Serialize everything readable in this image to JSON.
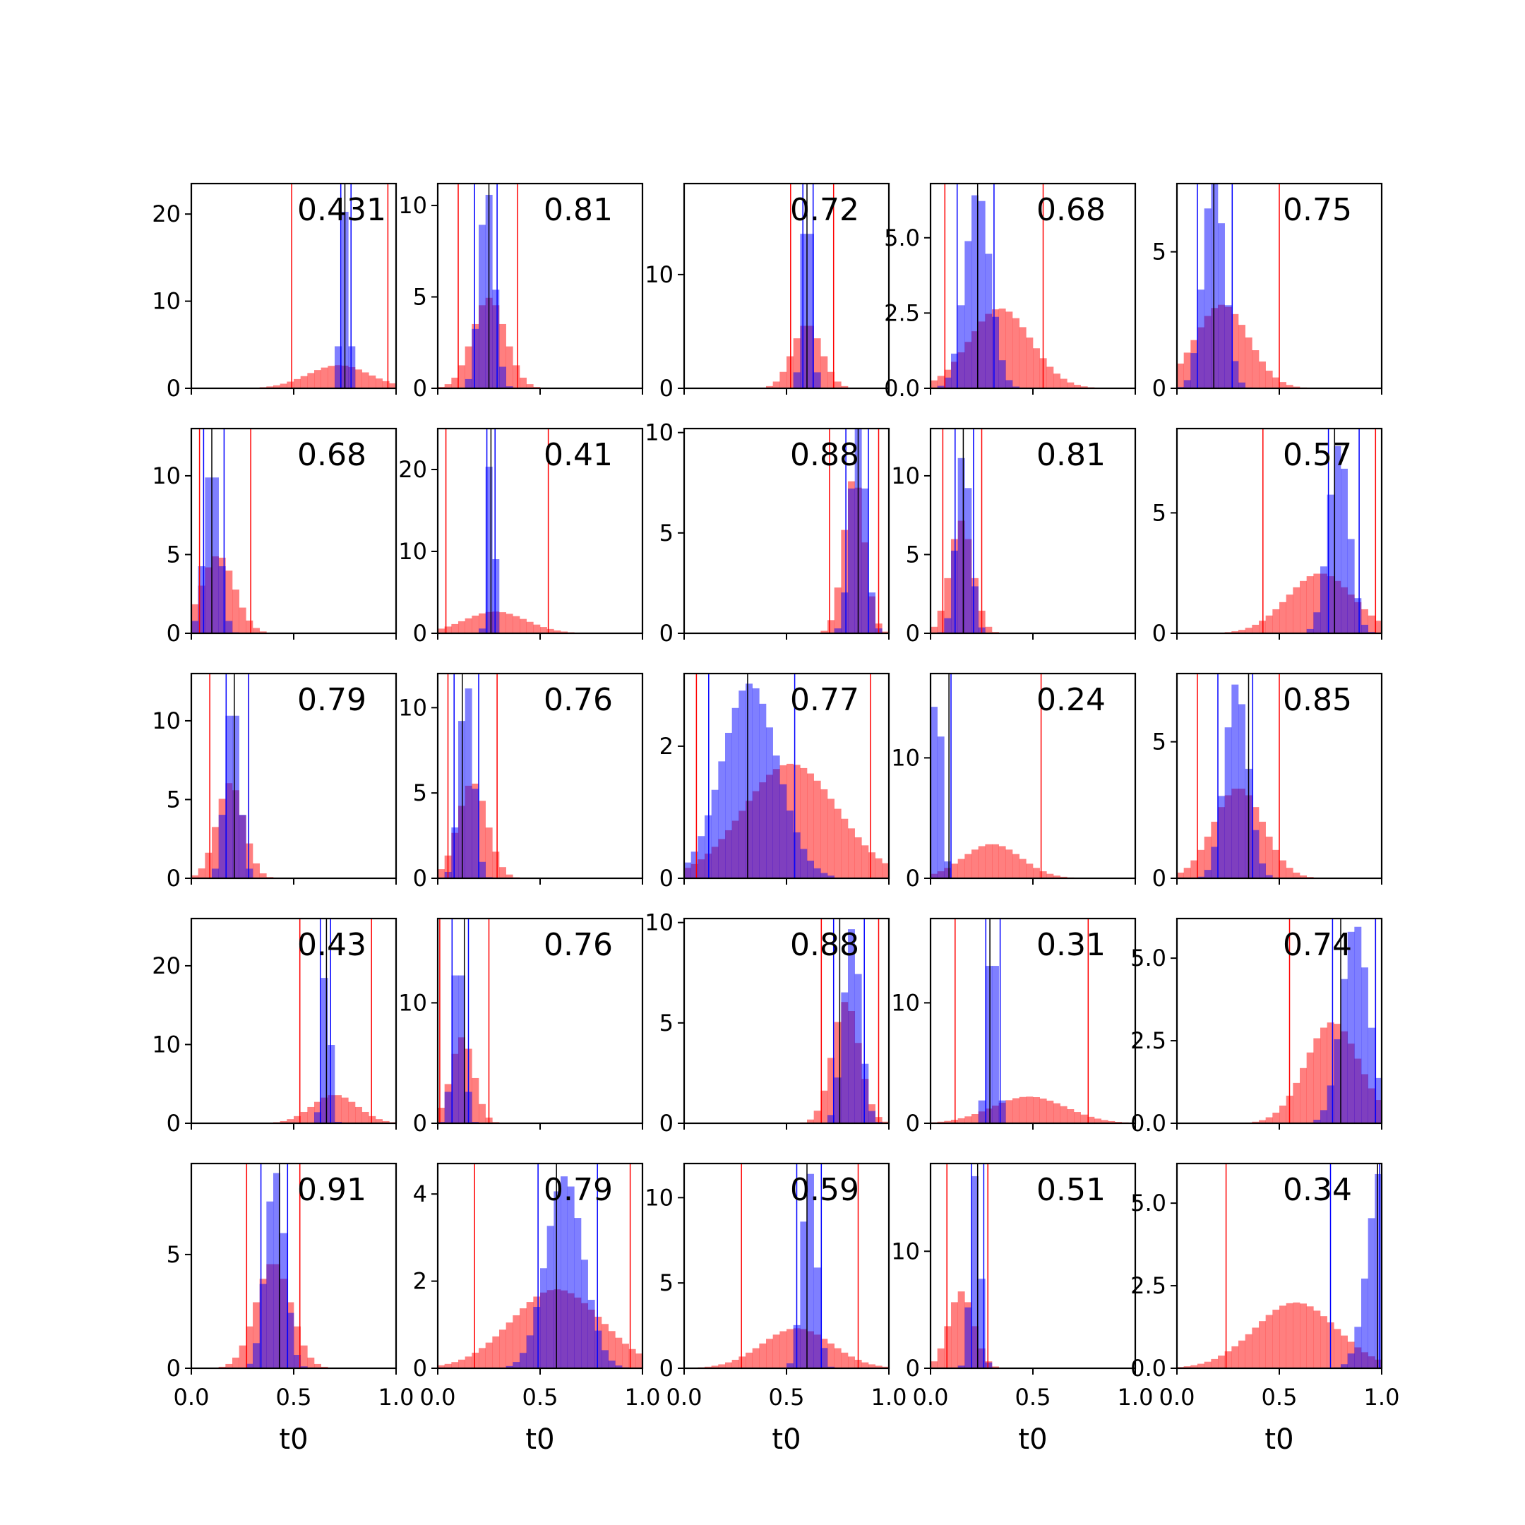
{
  "figure": {
    "rows": 5,
    "cols": 5,
    "xlabel": "t0",
    "x_ticks": [
      0.0,
      0.5,
      1.0
    ],
    "x_tick_labels": [
      "0.0",
      "0.5",
      "1.0"
    ],
    "colors": {
      "prior_hist": "#ff0000",
      "posterior_hist": "#0000ff",
      "prior_bounds": "#ff0000",
      "posterior_bounds": "#0000ff",
      "truth_line": "#000000",
      "axes": "#000000"
    },
    "hist_alpha": 0.5
  },
  "chart_data": [
    {
      "type": "bar",
      "label": "0.431",
      "ylim": [
        0,
        23.5
      ],
      "yticks": [
        0,
        10,
        20
      ],
      "ytick_labels": [
        "0",
        "10",
        "20"
      ],
      "prior": {
        "mean": 0.72,
        "sd": 0.15
      },
      "posterior": {
        "mean": 0.75,
        "sd": 0.017
      },
      "red_lines": [
        0.49,
        0.96
      ],
      "blue_lines": [
        0.73,
        0.78
      ],
      "black_line": 0.75
    },
    {
      "type": "bar",
      "label": "0.81",
      "ylim": [
        0,
        11.2
      ],
      "yticks": [
        0,
        5,
        10
      ],
      "ytick_labels": [
        "0",
        "5",
        "10"
      ],
      "prior": {
        "mean": 0.25,
        "sd": 0.08
      },
      "posterior": {
        "mean": 0.24,
        "sd": 0.035
      },
      "red_lines": [
        0.1,
        0.39
      ],
      "blue_lines": [
        0.18,
        0.29
      ],
      "black_line": 0.25
    },
    {
      "type": "bar",
      "label": "0.72",
      "ylim": [
        0,
        18
      ],
      "yticks": [
        0,
        10
      ],
      "ytick_labels": [
        "0",
        "10"
      ],
      "prior": {
        "mean": 0.6,
        "sd": 0.07
      },
      "posterior": {
        "mean": 0.6,
        "sd": 0.02
      },
      "red_lines": [
        0.52,
        0.73
      ],
      "blue_lines": [
        0.58,
        0.63
      ],
      "black_line": 0.6
    },
    {
      "type": "bar",
      "label": "0.68",
      "ylim": [
        0,
        6.8
      ],
      "yticks": [
        0,
        2.5,
        5
      ],
      "ytick_labels": [
        "0.0",
        "2.5",
        "5.0"
      ],
      "prior": {
        "mean": 0.34,
        "sd": 0.15
      },
      "posterior": {
        "mean": 0.23,
        "sd": 0.06
      },
      "red_lines": [
        0.07,
        0.55
      ],
      "blue_lines": [
        0.13,
        0.31
      ],
      "black_line": 0.23
    },
    {
      "type": "bar",
      "label": "0.75",
      "ylim": [
        0,
        7.5
      ],
      "yticks": [
        0,
        5
      ],
      "ytick_labels": [
        "0",
        "5"
      ],
      "prior": {
        "mean": 0.22,
        "sd": 0.13
      },
      "posterior": {
        "mean": 0.18,
        "sd": 0.05
      },
      "red_lines": [
        0.0,
        0.5
      ],
      "blue_lines": [
        0.1,
        0.27
      ],
      "black_line": 0.18
    },
    {
      "type": "bar",
      "label": "0.68",
      "ylim": [
        0,
        13
      ],
      "yticks": [
        0,
        5,
        10
      ],
      "ytick_labels": [
        "0",
        "5",
        "10"
      ],
      "prior": {
        "mean": 0.13,
        "sd": 0.08
      },
      "posterior": {
        "mean": 0.1,
        "sd": 0.035
      },
      "red_lines": [
        0.04,
        0.29
      ],
      "blue_lines": [
        0.06,
        0.16
      ],
      "black_line": 0.1
    },
    {
      "type": "bar",
      "label": "0.41",
      "ylim": [
        0,
        25
      ],
      "yticks": [
        0,
        10,
        20
      ],
      "ytick_labels": [
        "0",
        "10",
        "20"
      ],
      "prior": {
        "mean": 0.28,
        "sd": 0.15
      },
      "posterior": {
        "mean": 0.26,
        "sd": 0.013
      },
      "red_lines": [
        0.04,
        0.54
      ],
      "blue_lines": [
        0.24,
        0.28
      ],
      "black_line": 0.26
    },
    {
      "type": "bar",
      "label": "0.88",
      "ylim": [
        0,
        10.2
      ],
      "yticks": [
        0,
        5,
        10
      ],
      "ytick_labels": [
        "0",
        "5",
        "10"
      ],
      "prior": {
        "mean": 0.83,
        "sd": 0.05
      },
      "posterior": {
        "mean": 0.85,
        "sd": 0.035
      },
      "red_lines": [
        0.71,
        0.95
      ],
      "blue_lines": [
        0.79,
        0.9
      ],
      "black_line": 0.85
    },
    {
      "type": "bar",
      "label": "0.81",
      "ylim": [
        0,
        13
      ],
      "yticks": [
        0,
        5,
        10
      ],
      "ytick_labels": [
        "0",
        "5",
        "10"
      ],
      "prior": {
        "mean": 0.15,
        "sd": 0.055
      },
      "posterior": {
        "mean": 0.16,
        "sd": 0.033
      },
      "red_lines": [
        0.06,
        0.25
      ],
      "blue_lines": [
        0.12,
        0.21
      ],
      "black_line": 0.16
    },
    {
      "type": "bar",
      "label": "0.57",
      "ylim": [
        0,
        8.5
      ],
      "yticks": [
        0,
        5
      ],
      "ytick_labels": [
        "0",
        "5"
      ],
      "prior": {
        "mean": 0.7,
        "sd": 0.16
      },
      "posterior": {
        "mean": 0.79,
        "sd": 0.05
      },
      "red_lines": [
        0.42,
        0.97
      ],
      "blue_lines": [
        0.74,
        0.89
      ],
      "black_line": 0.77
    },
    {
      "type": "bar",
      "label": "0.79",
      "ylim": [
        0,
        13
      ],
      "yticks": [
        0,
        5,
        10
      ],
      "ytick_labels": [
        "0",
        "5",
        "10"
      ],
      "prior": {
        "mean": 0.19,
        "sd": 0.065
      },
      "posterior": {
        "mean": 0.2,
        "sd": 0.033
      },
      "red_lines": [
        0.09,
        0.28
      ],
      "blue_lines": [
        0.17,
        0.28
      ],
      "black_line": 0.21
    },
    {
      "type": "bar",
      "label": "0.76",
      "ylim": [
        0,
        12
      ],
      "yticks": [
        0,
        5,
        10
      ],
      "ytick_labels": [
        "0",
        "5",
        "10"
      ],
      "prior": {
        "mean": 0.17,
        "sd": 0.07
      },
      "posterior": {
        "mean": 0.14,
        "sd": 0.033
      },
      "red_lines": [
        0.05,
        0.29
      ],
      "blue_lines": [
        0.08,
        0.2
      ],
      "black_line": 0.12
    },
    {
      "type": "bar",
      "label": "0.77",
      "ylim": [
        0,
        3.1
      ],
      "yticks": [
        0,
        2
      ],
      "ytick_labels": [
        "0",
        "2"
      ],
      "prior": {
        "mean": 0.52,
        "sd": 0.23
      },
      "posterior": {
        "mean": 0.32,
        "sd": 0.135
      },
      "red_lines": [
        0.06,
        0.91
      ],
      "blue_lines": [
        0.12,
        0.54
      ],
      "black_line": 0.31
    },
    {
      "type": "bar",
      "label": "0.24",
      "ylim": [
        0,
        17
      ],
      "yticks": [
        0,
        10
      ],
      "ytick_labels": [
        "0",
        "10"
      ],
      "prior": {
        "mean": 0.3,
        "sd": 0.14
      },
      "posterior": {
        "mean": 0.03,
        "sd": 0.022
      },
      "red_lines": [
        0.0,
        0.54
      ],
      "blue_lines": [
        0.0,
        0.1
      ],
      "black_line": 0.09
    },
    {
      "type": "bar",
      "label": "0.85",
      "ylim": [
        0,
        7.5
      ],
      "yticks": [
        0,
        5
      ],
      "ytick_labels": [
        "0",
        "5"
      ],
      "prior": {
        "mean": 0.3,
        "sd": 0.12
      },
      "posterior": {
        "mean": 0.29,
        "sd": 0.055
      },
      "red_lines": [
        0.1,
        0.5
      ],
      "blue_lines": [
        0.2,
        0.37
      ],
      "black_line": 0.35
    },
    {
      "type": "bar",
      "label": "0.43",
      "ylim": [
        0,
        26
      ],
      "yticks": [
        0,
        10,
        20
      ],
      "ytick_labels": [
        "0",
        "10",
        "20"
      ],
      "prior": {
        "mean": 0.7,
        "sd": 0.11
      },
      "posterior": {
        "mean": 0.66,
        "sd": 0.016
      },
      "red_lines": [
        0.53,
        0.88
      ],
      "blue_lines": [
        0.63,
        0.68
      ],
      "black_line": 0.66
    },
    {
      "type": "bar",
      "label": "0.76",
      "ylim": [
        0,
        17
      ],
      "yticks": [
        0,
        10
      ],
      "ytick_labels": [
        "0",
        "10"
      ],
      "prior": {
        "mean": 0.12,
        "sd": 0.055
      },
      "posterior": {
        "mean": 0.1,
        "sd": 0.025
      },
      "red_lines": [
        0.01,
        0.25
      ],
      "blue_lines": [
        0.07,
        0.15
      ],
      "black_line": 0.13
    },
    {
      "type": "bar",
      "label": "0.88",
      "ylim": [
        0,
        10.2
      ],
      "yticks": [
        0,
        5,
        10
      ],
      "ytick_labels": [
        "0",
        "5",
        "10"
      ],
      "prior": {
        "mean": 0.79,
        "sd": 0.065
      },
      "posterior": {
        "mean": 0.82,
        "sd": 0.04
      },
      "red_lines": [
        0.67,
        0.95
      ],
      "blue_lines": [
        0.73,
        0.88
      ],
      "black_line": 0.76
    },
    {
      "type": "bar",
      "label": "0.31",
      "ylim": [
        0,
        17
      ],
      "yticks": [
        0,
        10
      ],
      "ytick_labels": [
        "0",
        "10"
      ],
      "prior": {
        "mean": 0.48,
        "sd": 0.18
      },
      "posterior": {
        "mean": 0.3,
        "sd": 0.022
      },
      "red_lines": [
        0.12,
        0.77
      ],
      "blue_lines": [
        0.27,
        0.34
      ],
      "black_line": 0.29
    },
    {
      "type": "bar",
      "label": "0.74",
      "ylim": [
        0,
        6.2
      ],
      "yticks": [
        0,
        2.5,
        5
      ],
      "ytick_labels": [
        "0.0",
        "2.5",
        "5.0"
      ],
      "prior": {
        "mean": 0.76,
        "sd": 0.13
      },
      "posterior": {
        "mean": 0.87,
        "sd": 0.065
      },
      "red_lines": [
        0.55,
        0.97
      ],
      "blue_lines": [
        0.76,
        0.97
      ],
      "black_line": 0.8
    },
    {
      "type": "bar",
      "label": "0.91",
      "ylim": [
        0,
        9
      ],
      "yticks": [
        0,
        5
      ],
      "ytick_labels": [
        "0",
        "5"
      ],
      "prior": {
        "mean": 0.4,
        "sd": 0.085
      },
      "posterior": {
        "mean": 0.41,
        "sd": 0.045
      },
      "red_lines": [
        0.27,
        0.53
      ],
      "blue_lines": [
        0.34,
        0.47
      ],
      "black_line": 0.43
    },
    {
      "type": "bar",
      "label": "0.79",
      "ylim": [
        0,
        4.7
      ],
      "yticks": [
        0,
        2,
        4
      ],
      "ytick_labels": [
        "0",
        "2",
        "4"
      ],
      "prior": {
        "mean": 0.58,
        "sd": 0.22
      },
      "posterior": {
        "mean": 0.62,
        "sd": 0.09
      },
      "red_lines": [
        0.18,
        0.94
      ],
      "blue_lines": [
        0.49,
        0.78
      ],
      "black_line": 0.58
    },
    {
      "type": "bar",
      "label": "0.59",
      "ylim": [
        0,
        12
      ],
      "yticks": [
        0,
        5,
        10
      ],
      "ytick_labels": [
        "0",
        "5",
        "10"
      ],
      "prior": {
        "mean": 0.55,
        "sd": 0.17
      },
      "posterior": {
        "mean": 0.61,
        "sd": 0.033
      },
      "red_lines": [
        0.28,
        0.85
      ],
      "blue_lines": [
        0.55,
        0.67
      ],
      "black_line": 0.6
    },
    {
      "type": "bar",
      "label": "0.51",
      "ylim": [
        0,
        17.5
      ],
      "yticks": [
        0,
        10
      ],
      "ytick_labels": [
        "0",
        "10"
      ],
      "prior": {
        "mean": 0.15,
        "sd": 0.06
      },
      "posterior": {
        "mean": 0.22,
        "sd": 0.022
      },
      "red_lines": [
        0.08,
        0.28
      ],
      "blue_lines": [
        0.2,
        0.26
      ],
      "black_line": 0.23
    },
    {
      "type": "bar",
      "label": "0.34",
      "ylim": [
        0,
        6.2
      ],
      "yticks": [
        0,
        2.5,
        5
      ],
      "ytick_labels": [
        "0.0",
        "2.5",
        "5.0"
      ],
      "prior": {
        "mean": 0.58,
        "sd": 0.2
      },
      "posterior": {
        "mean": 1.0,
        "sd": 0.065
      },
      "red_lines": [
        0.24,
        0.98
      ],
      "blue_lines": [
        0.75,
        0.99
      ],
      "black_line": 0.98
    }
  ]
}
